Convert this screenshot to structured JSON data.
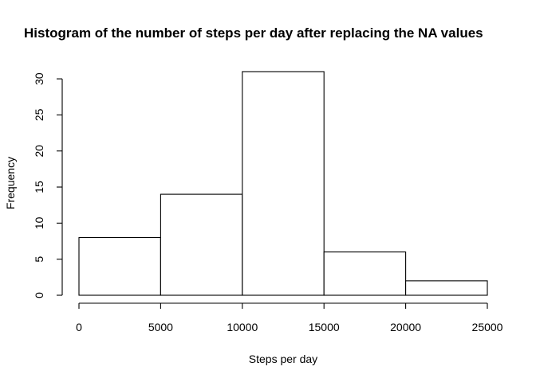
{
  "chart_data": {
    "type": "bar",
    "title": "Histogram of the number of steps per day after replacing the NA values",
    "xlabel": "Steps per day",
    "ylabel": "Frequency",
    "bins": [
      {
        "start": 0,
        "end": 5000,
        "value": 8
      },
      {
        "start": 5000,
        "end": 10000,
        "value": 14
      },
      {
        "start": 10000,
        "end": 15000,
        "value": 31
      },
      {
        "start": 15000,
        "end": 20000,
        "value": 6
      },
      {
        "start": 20000,
        "end": 25000,
        "value": 2
      }
    ],
    "xlim": [
      0,
      25000
    ],
    "ylim": [
      0,
      31
    ],
    "x_ticks": [
      0,
      5000,
      10000,
      15000,
      20000,
      25000
    ],
    "y_ticks": [
      0,
      5,
      10,
      15,
      20,
      25,
      30
    ],
    "x_tick_labels": [
      "0",
      "5000",
      "10000",
      "15000",
      "20000",
      "25000"
    ],
    "y_tick_labels": [
      "0",
      "5",
      "10",
      "15",
      "20",
      "25",
      "30"
    ],
    "grid": false,
    "legend": "none",
    "bar_fill": "#ffffff",
    "bar_stroke": "#000000"
  }
}
